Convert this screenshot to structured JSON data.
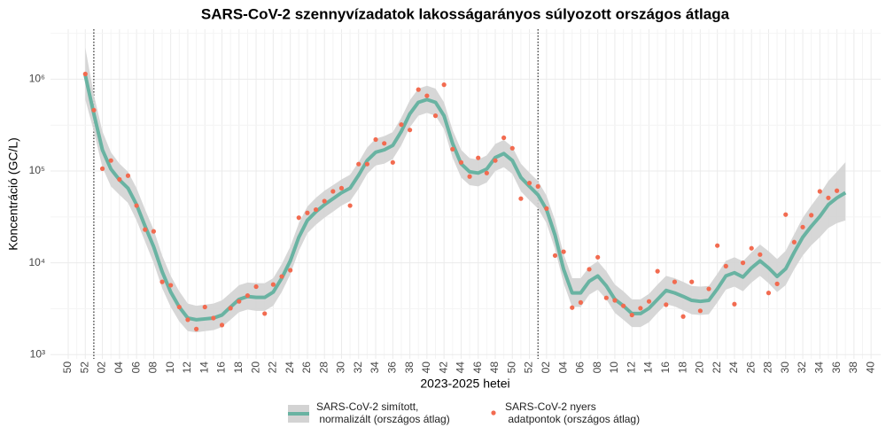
{
  "chart_data": {
    "type": "line",
    "title": "SARS-CoV-2 szennyvízadatok lakosságarányos súlyozott országos átlaga",
    "x_label": "2023-2025 hetei",
    "y_label": "Koncentráció (GC/L)",
    "log_y": true,
    "grid": true,
    "legend": "bottom",
    "categories": [
      "50",
      null,
      "52",
      null,
      "02",
      null,
      "04",
      null,
      "06",
      null,
      "08",
      null,
      "10",
      null,
      "12",
      null,
      "14",
      null,
      "16",
      null,
      "18",
      null,
      "20",
      null,
      "22",
      null,
      "24",
      null,
      "26",
      null,
      "28",
      null,
      "30",
      null,
      "32",
      null,
      "34",
      null,
      "36",
      null,
      "38",
      null,
      "40",
      null,
      "42",
      null,
      "44",
      null,
      "46",
      null,
      "48",
      null,
      "50",
      null,
      "52",
      null,
      "02",
      null,
      "04",
      null,
      "06",
      null,
      "08",
      null,
      "10",
      null,
      "12",
      null,
      "14",
      null,
      "16",
      null,
      "18",
      null,
      "20",
      null,
      "22",
      null,
      "24",
      null,
      "26",
      null,
      "28",
      null,
      "30",
      null,
      "32",
      null,
      "34",
      null,
      "36",
      null,
      "38",
      null,
      "40"
    ],
    "ylim": [
      900,
      3500000
    ],
    "yticks": [
      {
        "value": 1000,
        "label": "10³"
      },
      {
        "value": 10000,
        "label": "10⁴"
      },
      {
        "value": 100000,
        "label": "10⁵"
      },
      {
        "value": 1000000,
        "label": "10⁶"
      }
    ],
    "series": [
      {
        "name": "SARS-CoV-2 simított,\n normalizált (országos átlag)",
        "color": "#69b3a2",
        "band_color": "#d3d3d3",
        "values": [
          null,
          null,
          1100000,
          420000,
          170000,
          105000,
          80000,
          65000,
          43000,
          25000,
          15000,
          8000,
          4800,
          3300,
          2500,
          2400,
          2450,
          2500,
          2700,
          3300,
          4000,
          4300,
          4200,
          4200,
          4800,
          6800,
          10500,
          19000,
          29000,
          36000,
          43000,
          50000,
          58000,
          65000,
          90000,
          130000,
          160000,
          170000,
          190000,
          270000,
          420000,
          560000,
          600000,
          560000,
          400000,
          200000,
          120000,
          98000,
          95000,
          105000,
          140000,
          155000,
          130000,
          85000,
          68000,
          55000,
          38000,
          20000,
          8500,
          4700,
          4700,
          6300,
          7200,
          5600,
          4000,
          3400,
          2800,
          2800,
          3200,
          4000,
          5000,
          4700,
          4300,
          3900,
          3800,
          3900,
          5200,
          7200,
          7800,
          7000,
          8800,
          10500,
          8800,
          7100,
          8600,
          13000,
          19000,
          25000,
          32000,
          43000,
          51000,
          58000,
          null,
          null,
          null
        ],
        "lower": [
          null,
          null,
          600000,
          270000,
          110000,
          68000,
          55000,
          45000,
          29000,
          17000,
          10000,
          5300,
          3300,
          2300,
          1800,
          1750,
          1800,
          1850,
          2000,
          2400,
          2900,
          3100,
          3000,
          3000,
          3400,
          4800,
          7500,
          13500,
          21000,
          26000,
          31000,
          36000,
          42000,
          47000,
          64000,
          93000,
          115000,
          120000,
          135000,
          190000,
          300000,
          400000,
          430000,
          400000,
          285000,
          140000,
          85000,
          70000,
          68000,
          75000,
          100000,
          110000,
          93000,
          60000,
          48000,
          39000,
          27000,
          14000,
          6000,
          3300,
          3300,
          4500,
          5100,
          4000,
          2850,
          2400,
          2000,
          2000,
          2250,
          2850,
          3550,
          3350,
          3050,
          2750,
          2700,
          2750,
          3700,
          5100,
          5500,
          4900,
          6100,
          7200,
          6000,
          4800,
          5700,
          8500,
          12000,
          15500,
          19000,
          24000,
          27000,
          29000,
          null,
          null,
          null
        ],
        "upper": [
          null,
          null,
          2200000,
          680000,
          270000,
          160000,
          120000,
          98000,
          65000,
          38000,
          23000,
          12000,
          7200,
          4900,
          3600,
          3400,
          3500,
          3600,
          3900,
          4700,
          5700,
          6100,
          6000,
          6000,
          6800,
          9700,
          15000,
          27000,
          41000,
          51000,
          61000,
          70000,
          81000,
          91000,
          125000,
          180000,
          225000,
          240000,
          265000,
          380000,
          590000,
          790000,
          850000,
          790000,
          560000,
          280000,
          170000,
          138000,
          133000,
          148000,
          197000,
          218000,
          183000,
          120000,
          96000,
          78000,
          54000,
          29000,
          12500,
          6800,
          6800,
          9000,
          10400,
          8100,
          5800,
          4900,
          4000,
          4000,
          4600,
          5800,
          7200,
          6800,
          6200,
          5600,
          5500,
          5600,
          7600,
          10500,
          11500,
          10400,
          13000,
          15800,
          13400,
          11000,
          13500,
          20500,
          31000,
          42000,
          56000,
          78000,
          98000,
          125000,
          null,
          null,
          null
        ]
      },
      {
        "name": "SARS-CoV-2 nyers\n adatpontok (országos átlag)",
        "color": "#f26b50",
        "kind": "points",
        "values": [
          null,
          null,
          1140000,
          460000,
          106000,
          130000,
          81000,
          89000,
          42000,
          23000,
          22000,
          6200,
          5700,
          3300,
          2400,
          1900,
          3300,
          2500,
          2100,
          3200,
          3800,
          4400,
          5500,
          2800,
          5800,
          7100,
          8300,
          31000,
          35000,
          38000,
          47000,
          60000,
          65000,
          42000,
          119000,
          119000,
          220000,
          200000,
          124000,
          320000,
          280000,
          770000,
          660000,
          400000,
          870000,
          173000,
          124000,
          87000,
          139000,
          95000,
          130000,
          230000,
          177000,
          50000,
          74000,
          68000,
          39000,
          12000,
          13200,
          3250,
          3700,
          8500,
          11500,
          4150,
          3900,
          3400,
          2700,
          3200,
          3800,
          8100,
          3500,
          6200,
          2600,
          6200,
          3000,
          5200,
          15400,
          9200,
          3550,
          10000,
          14400,
          12300,
          4700,
          5900,
          33500,
          16800,
          24500,
          33000,
          60000,
          51000,
          61000,
          null,
          null,
          null,
          null
        ]
      }
    ]
  }
}
